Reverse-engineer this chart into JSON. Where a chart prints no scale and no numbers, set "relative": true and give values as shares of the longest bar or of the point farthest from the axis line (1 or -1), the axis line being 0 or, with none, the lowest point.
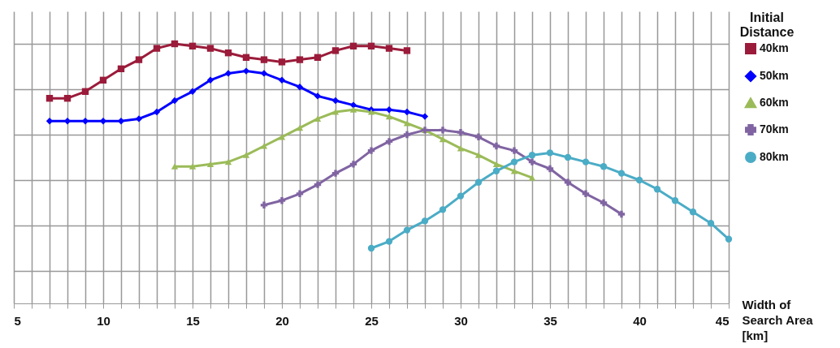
{
  "chart_data": {
    "type": "line",
    "relative": true,
    "xlabel": "Width of Search Area [km]",
    "legend_title": "Initial Distance",
    "xlim": [
      5,
      45
    ],
    "xticks": [
      5,
      10,
      15,
      20,
      25,
      30,
      35,
      40,
      45
    ],
    "grid": true,
    "legend": "right",
    "line_style": "solid",
    "series": [
      {
        "name": "40km",
        "color": "#9b1b3a",
        "marker": "square",
        "x": [
          7,
          8,
          9,
          10,
          11,
          12,
          13,
          14,
          15,
          16,
          17,
          18,
          19,
          20,
          21,
          22,
          23,
          24,
          25,
          26,
          27
        ],
        "values": [
          0.76,
          0.76,
          0.79,
          0.84,
          0.89,
          0.93,
          0.98,
          1.0,
          0.99,
          0.98,
          0.96,
          0.94,
          0.93,
          0.92,
          0.93,
          0.94,
          0.97,
          0.99,
          0.99,
          0.98,
          0.97
        ]
      },
      {
        "name": "50km",
        "color": "#0000ff",
        "marker": "diamond",
        "x": [
          7,
          8,
          9,
          10,
          11,
          12,
          13,
          14,
          15,
          16,
          17,
          18,
          19,
          20,
          21,
          22,
          23,
          24,
          25,
          26,
          27,
          28
        ],
        "values": [
          0.66,
          0.66,
          0.66,
          0.66,
          0.66,
          0.67,
          0.7,
          0.75,
          0.79,
          0.84,
          0.87,
          0.88,
          0.87,
          0.84,
          0.81,
          0.77,
          0.75,
          0.73,
          0.71,
          0.71,
          0.7,
          0.68
        ]
      },
      {
        "name": "60km",
        "color": "#9bbb59",
        "marker": "triangle",
        "x": [
          14,
          15,
          16,
          17,
          18,
          19,
          20,
          21,
          22,
          23,
          24,
          25,
          26,
          27,
          28,
          29,
          30,
          31,
          32,
          33,
          34
        ],
        "values": [
          0.46,
          0.46,
          0.47,
          0.48,
          0.51,
          0.55,
          0.59,
          0.63,
          0.67,
          0.7,
          0.71,
          0.7,
          0.68,
          0.65,
          0.62,
          0.58,
          0.54,
          0.51,
          0.47,
          0.44,
          0.41
        ]
      },
      {
        "name": "70km",
        "color": "#8064a2",
        "marker": "cross",
        "x": [
          19,
          20,
          21,
          22,
          23,
          24,
          25,
          26,
          27,
          28,
          29,
          30,
          31,
          32,
          33,
          34,
          35,
          36,
          37,
          38,
          39
        ],
        "values": [
          0.29,
          0.31,
          0.34,
          0.38,
          0.43,
          0.47,
          0.53,
          0.57,
          0.6,
          0.62,
          0.62,
          0.61,
          0.59,
          0.55,
          0.53,
          0.48,
          0.45,
          0.39,
          0.34,
          0.3,
          0.25
        ]
      },
      {
        "name": "80km",
        "color": "#4bacc6",
        "marker": "circle",
        "x": [
          25,
          26,
          27,
          28,
          29,
          30,
          31,
          32,
          33,
          34,
          35,
          36,
          37,
          38,
          39,
          40,
          41,
          42,
          43,
          44,
          45
        ],
        "values": [
          0.1,
          0.13,
          0.18,
          0.22,
          0.27,
          0.33,
          0.39,
          0.44,
          0.48,
          0.51,
          0.52,
          0.5,
          0.48,
          0.46,
          0.43,
          0.4,
          0.36,
          0.31,
          0.26,
          0.21,
          0.14
        ]
      }
    ]
  }
}
